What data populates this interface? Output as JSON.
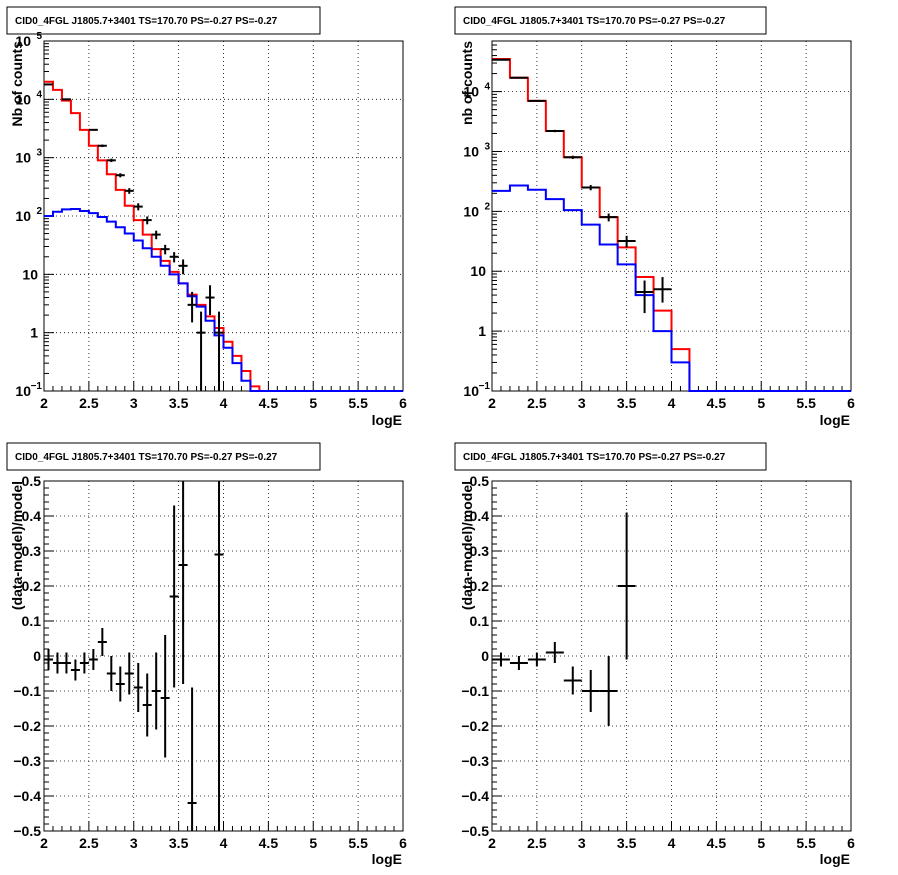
{
  "colors": {
    "data": "#000000",
    "model": "#ff0000",
    "component": "#0000ff",
    "grid": "#000000"
  },
  "chart_data": [
    {
      "id": "top-left",
      "type": "line",
      "title": "CID0_4FGL J1805.7+3401 TS=170.70 PS=-0.27 PS=-0.27",
      "xlabel": "logE",
      "ylabel": "Nb of counts",
      "xlim": [
        2,
        6
      ],
      "ylim": [
        0.1,
        100000
      ],
      "yscale": "log",
      "grid": true,
      "x_ticks": [
        {
          "v": 2,
          "label": "2"
        },
        {
          "v": 2.5,
          "label": "2.5"
        },
        {
          "v": 3,
          "label": "3"
        },
        {
          "v": 3.5,
          "label": "3.5"
        },
        {
          "v": 4,
          "label": "4"
        },
        {
          "v": 4.5,
          "label": "4.5"
        },
        {
          "v": 5,
          "label": "5"
        },
        {
          "v": 5.5,
          "label": "5.5"
        },
        {
          "v": 6,
          "label": "6"
        }
      ],
      "y_ticks": [
        {
          "v": 0.1,
          "base": "10",
          "exp": "−1"
        },
        {
          "v": 1,
          "base": "1",
          "exp": ""
        },
        {
          "v": 10,
          "base": "10",
          "exp": ""
        },
        {
          "v": 100,
          "base": "10",
          "exp": "2"
        },
        {
          "v": 1000,
          "base": "10",
          "exp": "3"
        },
        {
          "v": 10000,
          "base": "10",
          "exp": "4"
        },
        {
          "v": 100000,
          "base": "10",
          "exp": "5"
        }
      ],
      "bins": {
        "start": 2,
        "width": 0.1
      },
      "series": [
        {
          "role": "model",
          "color": "#ff0000",
          "values": [
            20000,
            14500,
            9500,
            5800,
            3000,
            1600,
            900,
            520,
            280,
            150,
            85,
            48,
            27,
            17,
            11,
            7,
            4.5,
            3,
            1.9,
            1.2,
            0.7,
            0.4,
            0.22,
            0.12,
            0.1,
            0.1,
            0.1,
            0.1,
            0.1,
            0.1,
            0.1,
            0.1,
            0.1,
            0.1,
            0.1,
            0.1,
            0.1,
            0.1,
            0.1,
            0.1
          ]
        },
        {
          "role": "component",
          "color": "#0000ff",
          "values": [
            100,
            118,
            130,
            132,
            122,
            112,
            96,
            80,
            64,
            50,
            38,
            28,
            20,
            14,
            10,
            7,
            4.2,
            2.8,
            1.6,
            0.9,
            0.55,
            0.3,
            0.15,
            0.1,
            0.1,
            0.1,
            0.1,
            0.1,
            0.1,
            0.1,
            0.1,
            0.1,
            0.1,
            0.1,
            0.1,
            0.1,
            0.1,
            0.1,
            0.1,
            0.1
          ]
        },
        {
          "role": "data",
          "color": "#000000",
          "points": [
            {
              "x": 2.05,
              "y": 18000,
              "lo": 17500,
              "hi": 18500
            },
            {
              "x": 2.25,
              "y": 10000,
              "lo": 9700,
              "hi": 10300
            },
            {
              "x": 2.55,
              "y": 3000,
              "lo": 2900,
              "hi": 3100
            },
            {
              "x": 2.65,
              "y": 1600,
              "lo": 1520,
              "hi": 1680
            },
            {
              "x": 2.75,
              "y": 900,
              "lo": 840,
              "hi": 960
            },
            {
              "x": 2.85,
              "y": 500,
              "lo": 460,
              "hi": 540
            },
            {
              "x": 2.95,
              "y": 270,
              "lo": 240,
              "hi": 300
            },
            {
              "x": 3.05,
              "y": 145,
              "lo": 125,
              "hi": 165
            },
            {
              "x": 3.15,
              "y": 85,
              "lo": 72,
              "hi": 98
            },
            {
              "x": 3.25,
              "y": 48,
              "lo": 40,
              "hi": 56
            },
            {
              "x": 3.35,
              "y": 27,
              "lo": 22,
              "hi": 32
            },
            {
              "x": 3.45,
              "y": 20,
              "lo": 16,
              "hi": 24
            },
            {
              "x": 3.55,
              "y": 14,
              "lo": 10,
              "hi": 18
            },
            {
              "x": 3.65,
              "y": 3,
              "lo": 1.5,
              "hi": 5
            },
            {
              "x": 3.75,
              "y": 1,
              "lo": 0.1,
              "hi": 2.3
            },
            {
              "x": 3.85,
              "y": 4,
              "lo": 2,
              "hi": 6.5
            },
            {
              "x": 3.95,
              "y": 1,
              "lo": 0.1,
              "hi": 2.3
            }
          ]
        }
      ]
    },
    {
      "id": "top-right",
      "type": "line",
      "title": "CID0_4FGL J1805.7+3401 TS=170.70 PS=-0.27 PS=-0.27",
      "xlabel": "logE",
      "ylabel": "nb of counts",
      "xlim": [
        2,
        6
      ],
      "ylim": [
        0.1,
        70000
      ],
      "yscale": "log",
      "grid": true,
      "x_ticks": [
        {
          "v": 2,
          "label": "2"
        },
        {
          "v": 2.5,
          "label": "2.5"
        },
        {
          "v": 3,
          "label": "3"
        },
        {
          "v": 3.5,
          "label": "3.5"
        },
        {
          "v": 4,
          "label": "4"
        },
        {
          "v": 4.5,
          "label": "4.5"
        },
        {
          "v": 5,
          "label": "5"
        },
        {
          "v": 5.5,
          "label": "5.5"
        },
        {
          "v": 6,
          "label": "6"
        }
      ],
      "y_ticks": [
        {
          "v": 0.1,
          "base": "10",
          "exp": "−1"
        },
        {
          "v": 1,
          "base": "1",
          "exp": ""
        },
        {
          "v": 10,
          "base": "10",
          "exp": ""
        },
        {
          "v": 100,
          "base": "10",
          "exp": "2"
        },
        {
          "v": 1000,
          "base": "10",
          "exp": "3"
        },
        {
          "v": 10000,
          "base": "10",
          "exp": "4"
        }
      ],
      "bins": {
        "start": 2,
        "width": 0.2
      },
      "series": [
        {
          "role": "model",
          "color": "#ff0000",
          "values": [
            35000,
            17000,
            7000,
            2200,
            800,
            250,
            80,
            25,
            8,
            2.2,
            0.5,
            0.1,
            0.1,
            0.1,
            0.1,
            0.1,
            0.1,
            0.1,
            0.1,
            0.1
          ]
        },
        {
          "role": "component",
          "color": "#0000ff",
          "values": [
            220,
            270,
            230,
            160,
            105,
            60,
            28,
            13,
            4,
            1,
            0.3,
            0.1,
            0.1,
            0.1,
            0.1,
            0.1,
            0.1,
            0.1,
            0.1,
            0.1
          ]
        },
        {
          "role": "data",
          "color": "#000000",
          "points": [
            {
              "x": 2.1,
              "y": 34000,
              "lo": 33500,
              "hi": 34500
            },
            {
              "x": 2.3,
              "y": 17000,
              "lo": 16700,
              "hi": 17300
            },
            {
              "x": 2.5,
              "y": 7000,
              "lo": 6800,
              "hi": 7200
            },
            {
              "x": 2.7,
              "y": 2200,
              "lo": 2100,
              "hi": 2300
            },
            {
              "x": 2.9,
              "y": 800,
              "lo": 750,
              "hi": 850
            },
            {
              "x": 3.1,
              "y": 250,
              "lo": 225,
              "hi": 275
            },
            {
              "x": 3.3,
              "y": 80,
              "lo": 68,
              "hi": 92
            },
            {
              "x": 3.5,
              "y": 32,
              "lo": 25,
              "hi": 39
            },
            {
              "x": 3.7,
              "y": 4.5,
              "lo": 2,
              "hi": 7
            },
            {
              "x": 3.9,
              "y": 5,
              "lo": 3,
              "hi": 8
            }
          ]
        }
      ]
    },
    {
      "id": "bottom-left",
      "type": "scatter",
      "title": "CID0_4FGL J1805.7+3401 TS=170.70 PS=-0.27 PS=-0.27",
      "xlabel": "logE",
      "ylabel": "(data-model)/model",
      "xlim": [
        2,
        6
      ],
      "ylim": [
        -0.5,
        0.5
      ],
      "yscale": "linear",
      "grid": true,
      "x_ticks": [
        {
          "v": 2,
          "label": "2"
        },
        {
          "v": 2.5,
          "label": "2.5"
        },
        {
          "v": 3,
          "label": "3"
        },
        {
          "v": 3.5,
          "label": "3.5"
        },
        {
          "v": 4,
          "label": "4"
        },
        {
          "v": 4.5,
          "label": "4.5"
        },
        {
          "v": 5,
          "label": "5"
        },
        {
          "v": 5.5,
          "label": "5.5"
        },
        {
          "v": 6,
          "label": "6"
        }
      ],
      "y_ticks": [
        {
          "v": -0.5,
          "label": "−0.5"
        },
        {
          "v": -0.4,
          "label": "−0.4"
        },
        {
          "v": -0.3,
          "label": "−0.3"
        },
        {
          "v": -0.2,
          "label": "−0.2"
        },
        {
          "v": -0.1,
          "label": "−0.1"
        },
        {
          "v": 0,
          "label": "0"
        },
        {
          "v": 0.1,
          "label": "0.1"
        },
        {
          "v": 0.2,
          "label": "0.2"
        },
        {
          "v": 0.3,
          "label": "0.3"
        },
        {
          "v": 0.4,
          "label": "0.4"
        },
        {
          "v": 0.5,
          "label": "0.5"
        }
      ],
      "bin_width": 0.1,
      "points": [
        {
          "x": 2.05,
          "y": -0.01,
          "lo": -0.04,
          "hi": 0.02
        },
        {
          "x": 2.15,
          "y": -0.02,
          "lo": -0.05,
          "hi": 0.01
        },
        {
          "x": 2.25,
          "y": -0.02,
          "lo": -0.05,
          "hi": 0.01
        },
        {
          "x": 2.35,
          "y": -0.04,
          "lo": -0.07,
          "hi": -0.01
        },
        {
          "x": 2.45,
          "y": -0.02,
          "lo": -0.05,
          "hi": 0.01
        },
        {
          "x": 2.55,
          "y": -0.01,
          "lo": -0.04,
          "hi": 0.02
        },
        {
          "x": 2.65,
          "y": 0.04,
          "lo": 0.0,
          "hi": 0.08
        },
        {
          "x": 2.75,
          "y": -0.05,
          "lo": -0.1,
          "hi": 0.0
        },
        {
          "x": 2.85,
          "y": -0.08,
          "lo": -0.13,
          "hi": -0.03
        },
        {
          "x": 2.95,
          "y": -0.05,
          "lo": -0.11,
          "hi": 0.01
        },
        {
          "x": 3.05,
          "y": -0.09,
          "lo": -0.16,
          "hi": -0.02
        },
        {
          "x": 3.15,
          "y": -0.14,
          "lo": -0.23,
          "hi": -0.05
        },
        {
          "x": 3.25,
          "y": -0.1,
          "lo": -0.21,
          "hi": 0.01
        },
        {
          "x": 3.35,
          "y": -0.12,
          "lo": -0.29,
          "hi": 0.06
        },
        {
          "x": 3.45,
          "y": 0.17,
          "lo": -0.09,
          "hi": 0.43
        },
        {
          "x": 3.55,
          "y": 0.26,
          "lo": -0.08,
          "hi": 0.5
        },
        {
          "x": 3.65,
          "y": -0.42,
          "lo": -0.5,
          "hi": -0.09
        },
        {
          "x": 3.95,
          "y": 0.29,
          "lo": -0.5,
          "hi": 0.5
        }
      ]
    },
    {
      "id": "bottom-right",
      "type": "scatter",
      "title": "CID0_4FGL J1805.7+3401 TS=170.70 PS=-0.27 PS=-0.27",
      "xlabel": "logE",
      "ylabel": "(data-model)/model",
      "xlim": [
        2,
        6
      ],
      "ylim": [
        -0.5,
        0.5
      ],
      "yscale": "linear",
      "grid": true,
      "x_ticks": [
        {
          "v": 2,
          "label": "2"
        },
        {
          "v": 2.5,
          "label": "2.5"
        },
        {
          "v": 3,
          "label": "3"
        },
        {
          "v": 3.5,
          "label": "3.5"
        },
        {
          "v": 4,
          "label": "4"
        },
        {
          "v": 4.5,
          "label": "4.5"
        },
        {
          "v": 5,
          "label": "5"
        },
        {
          "v": 5.5,
          "label": "5.5"
        },
        {
          "v": 6,
          "label": "6"
        }
      ],
      "y_ticks": [
        {
          "v": -0.5,
          "label": "−0.5"
        },
        {
          "v": -0.4,
          "label": "−0.4"
        },
        {
          "v": -0.3,
          "label": "−0.3"
        },
        {
          "v": -0.2,
          "label": "−0.2"
        },
        {
          "v": -0.1,
          "label": "−0.1"
        },
        {
          "v": 0,
          "label": "0"
        },
        {
          "v": 0.1,
          "label": "0.1"
        },
        {
          "v": 0.2,
          "label": "0.2"
        },
        {
          "v": 0.3,
          "label": "0.3"
        },
        {
          "v": 0.4,
          "label": "0.4"
        },
        {
          "v": 0.5,
          "label": "0.5"
        }
      ],
      "bin_width": 0.2,
      "points": [
        {
          "x": 2.1,
          "y": -0.01,
          "lo": -0.03,
          "hi": 0.01
        },
        {
          "x": 2.3,
          "y": -0.02,
          "lo": -0.04,
          "hi": 0.0
        },
        {
          "x": 2.5,
          "y": -0.01,
          "lo": -0.03,
          "hi": 0.01
        },
        {
          "x": 2.7,
          "y": 0.01,
          "lo": -0.02,
          "hi": 0.04
        },
        {
          "x": 2.9,
          "y": -0.07,
          "lo": -0.11,
          "hi": -0.03
        },
        {
          "x": 3.1,
          "y": -0.1,
          "lo": -0.16,
          "hi": -0.04
        },
        {
          "x": 3.3,
          "y": -0.1,
          "lo": -0.2,
          "hi": 0.0
        },
        {
          "x": 3.5,
          "y": 0.2,
          "lo": -0.01,
          "hi": 0.41
        }
      ]
    }
  ]
}
